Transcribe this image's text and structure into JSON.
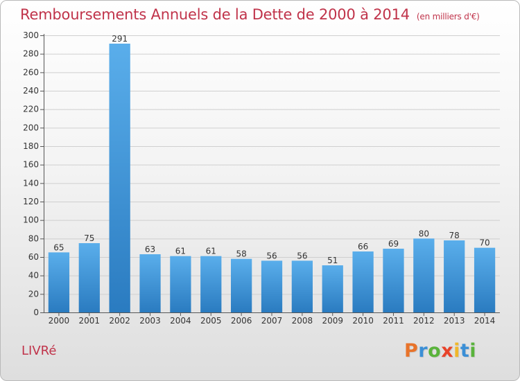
{
  "title": "Remboursements Annuels de la Dette de 2000 à 2014",
  "unit": "(en milliers d'€)",
  "commune": "LIVRé",
  "brand": {
    "letters": [
      "P",
      "r",
      "o",
      "x",
      "i",
      "t",
      "i"
    ],
    "colors": [
      "#e8732a",
      "#3b8fd6",
      "#59b33b",
      "#e8432a",
      "#f0b72a",
      "#3b8fd6",
      "#59b33b"
    ]
  },
  "colors": {
    "bar_light": "#5aaeeb",
    "bar_dark": "#2a7bc0",
    "title": "#c0334a"
  },
  "chart_data": {
    "type": "bar",
    "categories": [
      "2000",
      "2001",
      "2002",
      "2003",
      "2004",
      "2005",
      "2006",
      "2007",
      "2008",
      "2009",
      "2010",
      "2011",
      "2012",
      "2013",
      "2014"
    ],
    "values": [
      65,
      75,
      291,
      63,
      61,
      61,
      58,
      56,
      56,
      51,
      66,
      69,
      80,
      78,
      70
    ],
    "ylim": [
      0,
      300
    ],
    "yticks": [
      0,
      20,
      40,
      60,
      80,
      100,
      120,
      140,
      160,
      180,
      200,
      220,
      240,
      260,
      280,
      300
    ],
    "grid": true,
    "legend": "none"
  }
}
